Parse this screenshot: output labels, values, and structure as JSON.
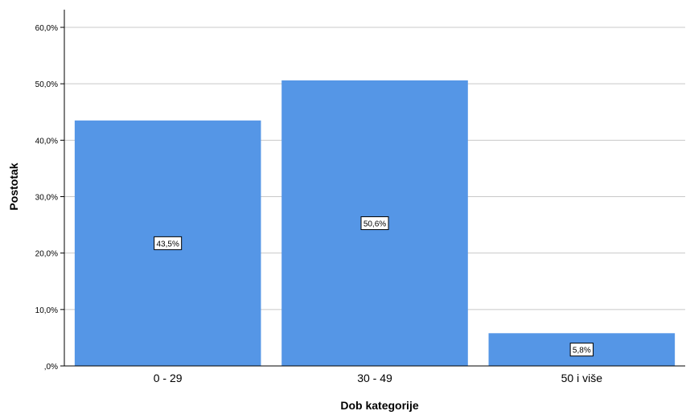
{
  "chart_data": {
    "type": "bar",
    "categories": [
      "0 - 29",
      "30 - 49",
      "50 i više"
    ],
    "values": [
      43.5,
      50.6,
      5.8
    ],
    "data_labels": [
      "43,5%",
      "50,6%",
      "5,8%"
    ],
    "title": "",
    "xlabel": "Dob kategorije",
    "ylabel": "Postotak",
    "ylim": [
      0,
      60
    ],
    "yticks": [
      0,
      10,
      20,
      30,
      40,
      50,
      60
    ],
    "ytick_labels": [
      ",0%",
      "10,0%",
      "20,0%",
      "30,0%",
      "40,0%",
      "50,0%",
      "60,0%"
    ],
    "grid": true,
    "bar_color": "#5596e6",
    "grid_color": "#c8c8c8",
    "axis_color": "#000000"
  }
}
